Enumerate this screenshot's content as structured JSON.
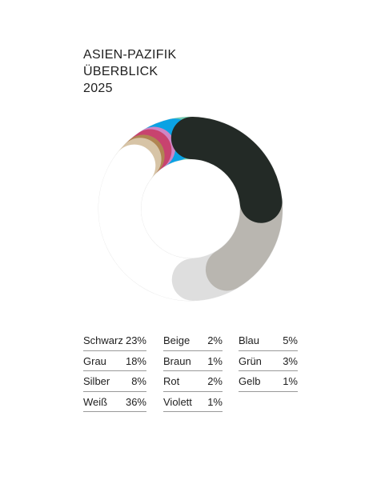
{
  "title_lines": [
    "ASIEN-PAZIFIK",
    "ÜBERBLICK",
    "2025"
  ],
  "chart_data": {
    "type": "pie",
    "title": "ASIEN-PAZIFIK ÜBERBLICK 2025",
    "slices": [
      {
        "label": "Schwarz",
        "value": 23,
        "display": "23%",
        "color": "#232a26"
      },
      {
        "label": "Grau",
        "value": 18,
        "display": "18%",
        "color": "#b9b6b0"
      },
      {
        "label": "Silber",
        "value": 8,
        "display": "8%",
        "color": "#dedede"
      },
      {
        "label": "Weiß",
        "value": 36,
        "display": "36%",
        "color": "#ffffff"
      },
      {
        "label": "Beige",
        "value": 2,
        "display": "2%",
        "color": "#d7c4a6"
      },
      {
        "label": "Braun",
        "value": 1,
        "display": "1%",
        "color": "#b08552"
      },
      {
        "label": "Rot",
        "value": 2,
        "display": "2%",
        "color": "#c8436f"
      },
      {
        "label": "Violett",
        "value": 1,
        "display": "1%",
        "color": "#cf85c6"
      },
      {
        "label": "Blau",
        "value": 5,
        "display": "5%",
        "color": "#0ba2e4"
      },
      {
        "label": "Grün",
        "value": 3,
        "display": "3%",
        "color": "#70cdb4"
      },
      {
        "label": "Gelb",
        "value": 1,
        "display": "1%",
        "color": "#fbf597"
      }
    ],
    "legend_columns": [
      [
        "Schwarz",
        "Grau",
        "Silber",
        "Weiß"
      ],
      [
        "Beige",
        "Braun",
        "Rot",
        "Violett"
      ],
      [
        "Blau",
        "Grün",
        "Gelb"
      ]
    ]
  }
}
